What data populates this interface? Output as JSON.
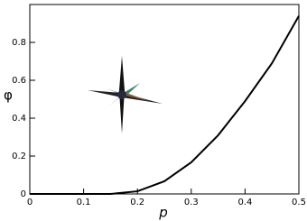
{
  "chart_data": {
    "type": "line",
    "x_label": "p",
    "y_label": "φ",
    "x": [
      0,
      0.05,
      0.1,
      0.15,
      0.2,
      0.25,
      0.3,
      0.35,
      0.4,
      0.45,
      0.5
    ],
    "series": [
      {
        "color": "#000000",
        "values": [
          0,
          0,
          0,
          0,
          0.014,
          0.067,
          0.167,
          0.31,
          0.49,
          0.69,
          0.94
        ]
      }
    ],
    "xlim": [
      0,
      0.5
    ],
    "xticks": [
      0,
      0.1,
      0.2,
      0.3,
      0.4,
      0.5
    ],
    "ylim": [
      0,
      1
    ],
    "yticks": [
      0,
      0.2,
      0.4,
      0.6,
      0.8
    ]
  }
}
